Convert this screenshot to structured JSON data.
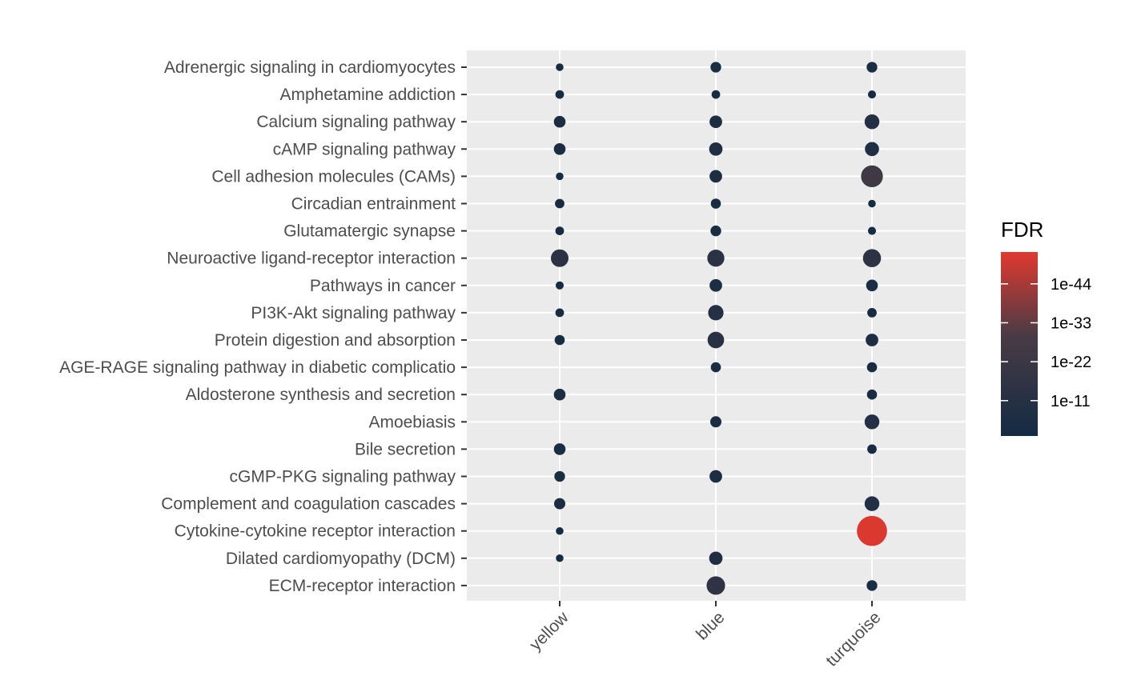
{
  "chart_data": {
    "type": "scatter",
    "title": "",
    "xlabel": "",
    "ylabel": "",
    "categories_x": [
      "yellow",
      "blue",
      "turquoise"
    ],
    "categories_y": [
      "Adrenergic signaling in cardiomyocytes",
      "Amphetamine addiction",
      "Calcium signaling pathway",
      "cAMP signaling pathway",
      "Cell adhesion molecules (CAMs)",
      "Circadian entrainment",
      "Glutamatergic synapse",
      "Neuroactive ligand-receptor interaction",
      "Pathways in cancer",
      "PI3K-Akt signaling pathway",
      "Protein digestion and absorption",
      "AGE-RAGE signaling pathway in diabetic complicatio",
      "Aldosterone synthesis and secretion",
      "Amoebiasis",
      "Bile secretion",
      "cGMP-PKG signaling pathway",
      "Complement and coagulation cascades",
      "Cytokine-cytokine receptor interaction",
      "Dilated cardiomyopathy (DCM)",
      "ECM-receptor interaction"
    ],
    "points": [
      {
        "x": "yellow",
        "y": "Adrenergic signaling in cardiomyocytes",
        "neg_log10_fdr": 2
      },
      {
        "x": "blue",
        "y": "Adrenergic signaling in cardiomyocytes",
        "neg_log10_fdr": 4
      },
      {
        "x": "turquoise",
        "y": "Adrenergic signaling in cardiomyocytes",
        "neg_log10_fdr": 4
      },
      {
        "x": "yellow",
        "y": "Amphetamine addiction",
        "neg_log10_fdr": 2.5
      },
      {
        "x": "blue",
        "y": "Amphetamine addiction",
        "neg_log10_fdr": 2.5
      },
      {
        "x": "turquoise",
        "y": "Amphetamine addiction",
        "neg_log10_fdr": 2.2
      },
      {
        "x": "yellow",
        "y": "Calcium signaling pathway",
        "neg_log10_fdr": 5
      },
      {
        "x": "blue",
        "y": "Calcium signaling pathway",
        "neg_log10_fdr": 6
      },
      {
        "x": "turquoise",
        "y": "Calcium signaling pathway",
        "neg_log10_fdr": 9
      },
      {
        "x": "yellow",
        "y": "cAMP signaling pathway",
        "neg_log10_fdr": 5
      },
      {
        "x": "blue",
        "y": "cAMP signaling pathway",
        "neg_log10_fdr": 7
      },
      {
        "x": "turquoise",
        "y": "cAMP signaling pathway",
        "neg_log10_fdr": 8
      },
      {
        "x": "yellow",
        "y": "Cell adhesion molecules (CAMs)",
        "neg_log10_fdr": 2
      },
      {
        "x": "blue",
        "y": "Cell adhesion molecules (CAMs)",
        "neg_log10_fdr": 6
      },
      {
        "x": "turquoise",
        "y": "Cell adhesion molecules (CAMs)",
        "neg_log10_fdr": 24
      },
      {
        "x": "yellow",
        "y": "Circadian entrainment",
        "neg_log10_fdr": 3
      },
      {
        "x": "blue",
        "y": "Circadian entrainment",
        "neg_log10_fdr": 3.5
      },
      {
        "x": "turquoise",
        "y": "Circadian entrainment",
        "neg_log10_fdr": 2
      },
      {
        "x": "yellow",
        "y": "Glutamatergic synapse",
        "neg_log10_fdr": 2.5
      },
      {
        "x": "blue",
        "y": "Glutamatergic synapse",
        "neg_log10_fdr": 4
      },
      {
        "x": "turquoise",
        "y": "Glutamatergic synapse",
        "neg_log10_fdr": 2.2
      },
      {
        "x": "yellow",
        "y": "Neuroactive ligand-receptor interaction",
        "neg_log10_fdr": 14
      },
      {
        "x": "blue",
        "y": "Neuroactive ligand-receptor interaction",
        "neg_log10_fdr": 13
      },
      {
        "x": "turquoise",
        "y": "Neuroactive ligand-receptor interaction",
        "neg_log10_fdr": 15
      },
      {
        "x": "yellow",
        "y": "Pathways in cancer",
        "neg_log10_fdr": 2.2
      },
      {
        "x": "blue",
        "y": "Pathways in cancer",
        "neg_log10_fdr": 6
      },
      {
        "x": "turquoise",
        "y": "Pathways in cancer",
        "neg_log10_fdr": 5
      },
      {
        "x": "yellow",
        "y": "PI3K-Akt signaling pathway",
        "neg_log10_fdr": 2.5
      },
      {
        "x": "blue",
        "y": "PI3K-Akt signaling pathway",
        "neg_log10_fdr": 10
      },
      {
        "x": "turquoise",
        "y": "PI3K-Akt signaling pathway",
        "neg_log10_fdr": 3
      },
      {
        "x": "yellow",
        "y": "Protein digestion and absorption",
        "neg_log10_fdr": 3.5
      },
      {
        "x": "blue",
        "y": "Protein digestion and absorption",
        "neg_log10_fdr": 12
      },
      {
        "x": "turquoise",
        "y": "Protein digestion and absorption",
        "neg_log10_fdr": 6
      },
      {
        "x": "blue",
        "y": "AGE-RAGE signaling pathway in diabetic complicatio",
        "neg_log10_fdr": 3.5
      },
      {
        "x": "turquoise",
        "y": "AGE-RAGE signaling pathway in diabetic complicatio",
        "neg_log10_fdr": 3.5
      },
      {
        "x": "yellow",
        "y": "Aldosterone synthesis and secretion",
        "neg_log10_fdr": 5
      },
      {
        "x": "turquoise",
        "y": "Aldosterone synthesis and secretion",
        "neg_log10_fdr": 3.5
      },
      {
        "x": "blue",
        "y": "Amoebiasis",
        "neg_log10_fdr": 4.5
      },
      {
        "x": "turquoise",
        "y": "Amoebiasis",
        "neg_log10_fdr": 9
      },
      {
        "x": "yellow",
        "y": "Bile secretion",
        "neg_log10_fdr": 5
      },
      {
        "x": "turquoise",
        "y": "Bile secretion",
        "neg_log10_fdr": 3
      },
      {
        "x": "yellow",
        "y": "cGMP-PKG signaling pathway",
        "neg_log10_fdr": 4
      },
      {
        "x": "blue",
        "y": "cGMP-PKG signaling pathway",
        "neg_log10_fdr": 6
      },
      {
        "x": "yellow",
        "y": "Complement and coagulation cascades",
        "neg_log10_fdr": 4.5
      },
      {
        "x": "turquoise",
        "y": "Complement and coagulation cascades",
        "neg_log10_fdr": 9
      },
      {
        "x": "yellow",
        "y": "Cytokine-cytokine receptor interaction",
        "neg_log10_fdr": 2
      },
      {
        "x": "turquoise",
        "y": "Cytokine-cytokine receptor interaction",
        "neg_log10_fdr": 52
      },
      {
        "x": "yellow",
        "y": "Dilated cardiomyopathy (DCM)",
        "neg_log10_fdr": 2
      },
      {
        "x": "blue",
        "y": "Dilated cardiomyopathy (DCM)",
        "neg_log10_fdr": 7
      },
      {
        "x": "blue",
        "y": "ECM-receptor interaction",
        "neg_log10_fdr": 16
      },
      {
        "x": "turquoise",
        "y": "ECM-receptor interaction",
        "neg_log10_fdr": 4
      }
    ],
    "legend": {
      "title": "FDR",
      "position": "right",
      "ticks": [
        {
          "label": "1e-11",
          "neg_log10": 11
        },
        {
          "label": "1e-22",
          "neg_log10": 22
        },
        {
          "label": "1e-33",
          "neg_log10": 33
        },
        {
          "label": "1e-44",
          "neg_log10": 44
        }
      ],
      "range_neg_log10": [
        1,
        53
      ]
    },
    "colors": {
      "low": "#132b43",
      "mid": "#4a3b45",
      "high": "#e1392f",
      "panel_background": "#ebebeb",
      "grid": "#ffffff",
      "tick_label": "#4d4d4d"
    },
    "grid": true
  }
}
